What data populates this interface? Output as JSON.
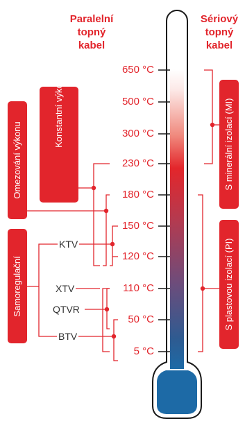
{
  "headers": {
    "left": "Paralelní\ntopný\nkabel",
    "right": "Sériový\ntopný\nkabel"
  },
  "temperatures": [
    "650 °C",
    "500 °C",
    "300 °C",
    "230 °C",
    "180 °C",
    "150 °C",
    "120 °C",
    "110 °C",
    "50 °C",
    "5 °C"
  ],
  "left_boxes": {
    "power_limiting": "Omezování výkonu",
    "constant_power": "Konstantní výkon",
    "self_regulating": "Samoregulační"
  },
  "products": {
    "ktv": "KTV",
    "xtv": "XTV",
    "qtvr": "QTVR",
    "btv": "BTV"
  },
  "right_boxes": {
    "mineral": "S minerální izolací (MI)",
    "plastic": "S plastovou izolací (PI)"
  },
  "colors": {
    "accent": "#e2252c",
    "thermo_hot": "#e3262b",
    "thermo_cold": "#1d6aa6"
  }
}
